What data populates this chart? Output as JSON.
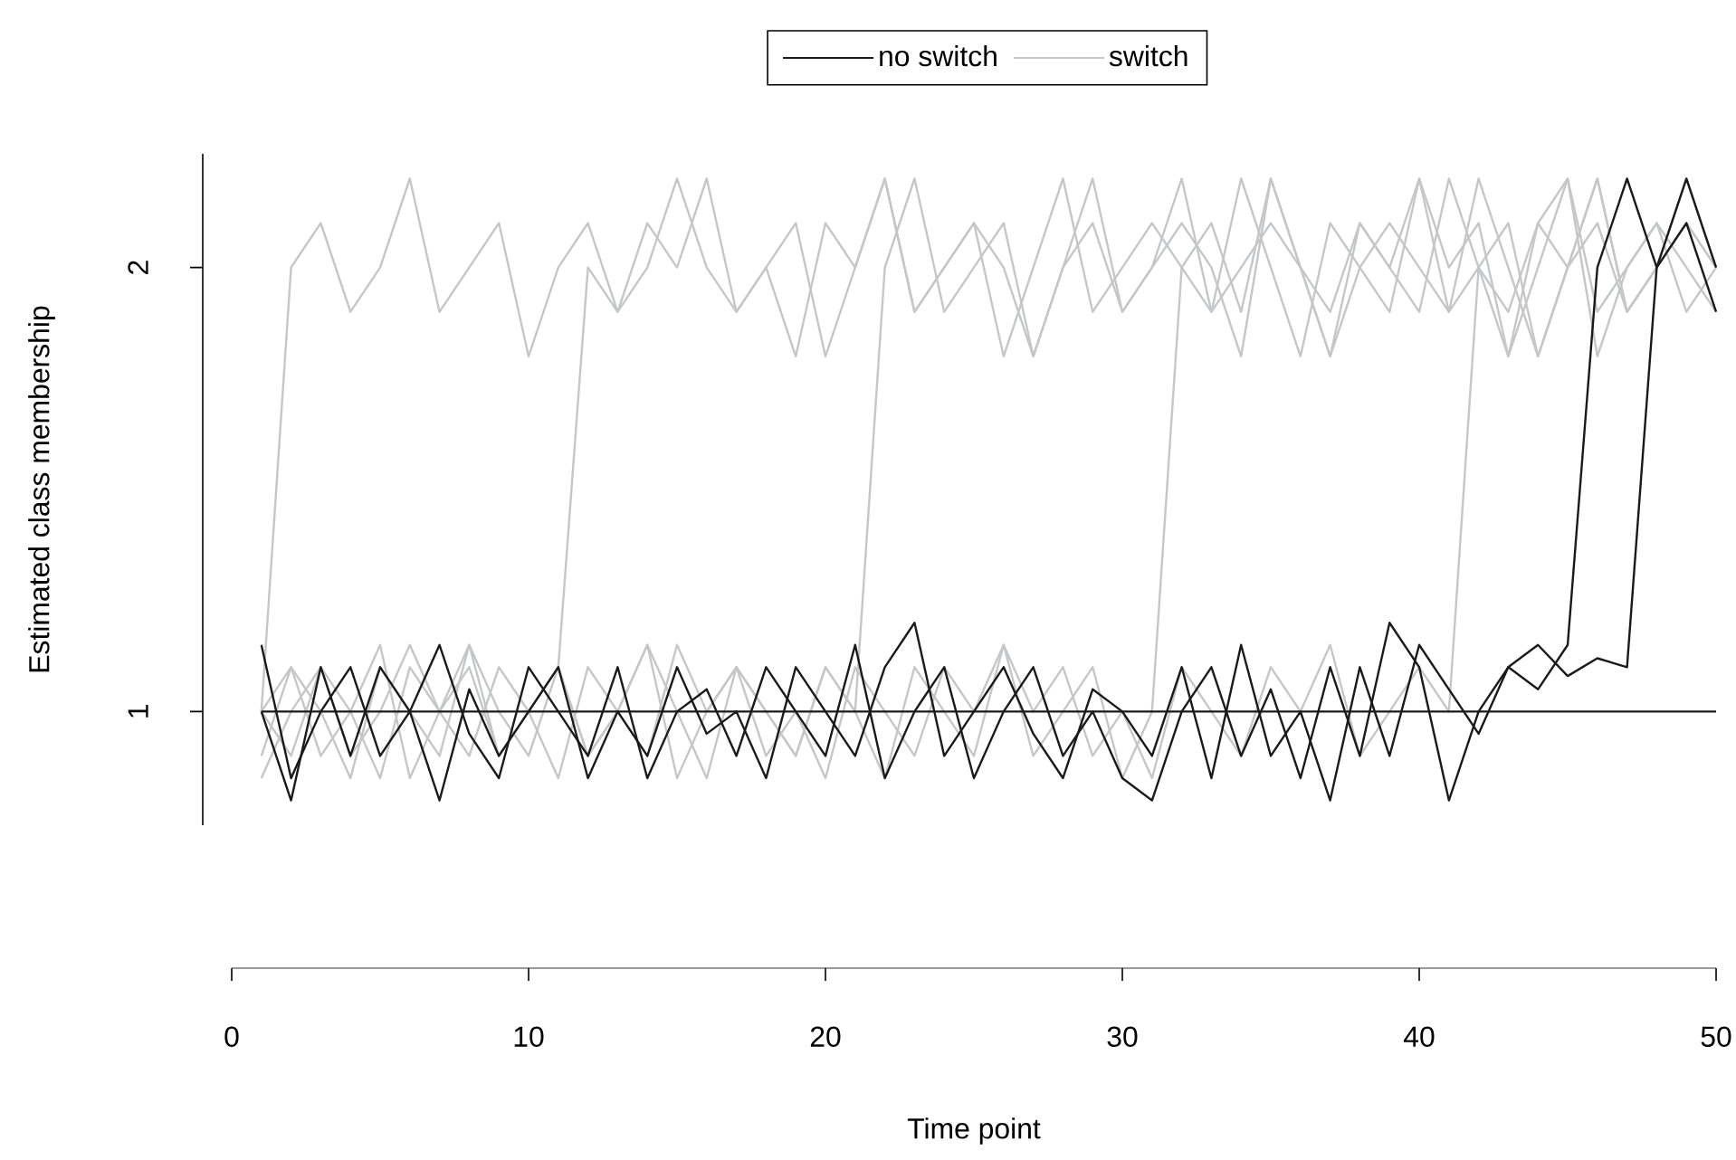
{
  "chart_data": {
    "type": "line",
    "xlabel": "Time point",
    "ylabel": "Estimated class membership",
    "x": [
      1,
      2,
      3,
      4,
      5,
      6,
      7,
      8,
      9,
      10,
      11,
      12,
      13,
      14,
      15,
      16,
      17,
      18,
      19,
      20,
      21,
      22,
      23,
      24,
      25,
      26,
      27,
      28,
      29,
      30,
      31,
      32,
      33,
      34,
      35,
      36,
      37,
      38,
      39,
      40,
      41,
      42,
      43,
      44,
      45,
      46,
      47,
      48,
      49,
      50
    ],
    "xlim": [
      0,
      50
    ],
    "xticks": [
      0,
      10,
      20,
      30,
      40,
      50
    ],
    "ylim": [
      0.744,
      2.256
    ],
    "yticks": [
      1,
      2
    ],
    "legend": "top",
    "series": [
      {
        "name": "no switch",
        "color": "#1a1a1a",
        "values": [
          1,
          1,
          1,
          1,
          1,
          1,
          1,
          1,
          1,
          1,
          1,
          1,
          1,
          1,
          1,
          1,
          1,
          1,
          1,
          1,
          1,
          1,
          1,
          1,
          1,
          1,
          1,
          1,
          1,
          1,
          1,
          1,
          1,
          1,
          1,
          1,
          1,
          1,
          1,
          1,
          1,
          1,
          1,
          1,
          1,
          1,
          1,
          1,
          1,
          1
        ]
      },
      {
        "color": "#1a1a1a",
        "values": [
          1,
          0.8,
          1.1,
          0.9,
          1.1,
          1,
          0.8,
          1.05,
          0.9,
          1,
          1.1,
          0.85,
          1,
          0.9,
          1.1,
          0.95,
          1,
          0.85,
          1.1,
          1,
          0.9,
          1.1,
          1.2,
          0.9,
          1,
          1.1,
          0.95,
          0.85,
          1.05,
          1,
          0.9,
          1.1,
          0.85,
          1.15,
          0.9,
          1,
          0.8,
          1.1,
          0.9,
          1.15,
          1.05,
          0.95,
          1.1,
          1.05,
          1.15,
          2,
          2.2,
          2,
          2.2,
          2
        ]
      },
      {
        "color": "#1a1a1a",
        "values": [
          1.15,
          0.85,
          1,
          1.1,
          0.9,
          1,
          1.15,
          0.95,
          0.85,
          1.1,
          1,
          0.9,
          1.1,
          0.85,
          1,
          1.05,
          0.9,
          1.1,
          1,
          0.9,
          1.15,
          0.85,
          1,
          1.1,
          0.85,
          1,
          1.1,
          0.9,
          1,
          0.85,
          0.8,
          1,
          1.1,
          0.9,
          1.05,
          0.85,
          1.1,
          0.9,
          1.2,
          1.1,
          0.8,
          1,
          1.1,
          1.15,
          1.08,
          1.12,
          1.1,
          2,
          2.1,
          1.9
        ]
      },
      {
        "name": "switch",
        "color": "#c3c7c9",
        "values": [
          1,
          2,
          2.1,
          1.9,
          2,
          2.2,
          1.9,
          2,
          2.1,
          1.8,
          2,
          2.1,
          1.9,
          2,
          2.2,
          2,
          1.9,
          2,
          2.1,
          1.8,
          2,
          2.2,
          1.9,
          2,
          2.1,
          2,
          1.8,
          2,
          2.1,
          1.9,
          2,
          2.2,
          1.9,
          2,
          2.1,
          2,
          1.8,
          2,
          2.1,
          2,
          1.9,
          2.2,
          2,
          1.8,
          2,
          2.1,
          1.9,
          2,
          2.2,
          2
        ]
      },
      {
        "color": "#c3c7c9",
        "values": [
          0.9,
          1.1,
          1,
          0.85,
          1.1,
          1,
          0.9,
          1.15,
          1,
          0.9,
          1.1,
          2,
          1.9,
          2.1,
          2,
          2.2,
          1.9,
          2,
          1.8,
          2.1,
          2,
          2.2,
          1.9,
          2,
          2.1,
          1.8,
          2,
          2.2,
          1.9,
          2,
          2.1,
          2,
          1.9,
          2.2,
          2,
          1.8,
          2.1,
          2,
          1.9,
          2.2,
          2,
          2.1,
          1.8,
          2,
          2.2,
          1.9,
          2,
          2.1,
          2,
          1.9
        ]
      },
      {
        "color": "#c3c7c9",
        "values": [
          1,
          1.1,
          0.9,
          1,
          1.15,
          0.85,
          1,
          1.1,
          0.9,
          1,
          1.1,
          0.9,
          1,
          1.15,
          1,
          0.85,
          1.1,
          1,
          0.9,
          1.1,
          1,
          2,
          2.2,
          1.9,
          2,
          2.1,
          1.8,
          2,
          2.2,
          1.9,
          2,
          2.1,
          2,
          1.8,
          2.2,
          2,
          1.9,
          2.1,
          2,
          2.2,
          1.9,
          2,
          1.8,
          2.1,
          2,
          2.2,
          1.9,
          2,
          2.1,
          2
        ]
      },
      {
        "color": "#c3c7c9",
        "values": [
          0.85,
          1,
          1.1,
          0.9,
          1,
          1.15,
          1,
          0.9,
          1.1,
          1,
          0.85,
          1.1,
          1,
          0.9,
          1.15,
          1,
          1.1,
          0.9,
          1,
          0.85,
          1.1,
          1,
          0.9,
          1.1,
          1,
          1.15,
          0.9,
          1,
          1.1,
          0.85,
          1,
          2,
          2.1,
          1.9,
          2.2,
          2,
          1.8,
          2.1,
          2,
          1.9,
          2.2,
          2,
          2.1,
          1.8,
          2,
          2.2,
          1.9,
          2,
          2.1,
          2
        ]
      },
      {
        "color": "#c3c7c9",
        "values": [
          1,
          0.9,
          1.1,
          1,
          0.85,
          1.1,
          1,
          1.15,
          0.9,
          1,
          1.1,
          0.9,
          1,
          1.15,
          0.85,
          1,
          1.1,
          1,
          0.9,
          1.1,
          1,
          0.85,
          1.1,
          1,
          0.9,
          1.15,
          1,
          1.1,
          0.9,
          1,
          0.85,
          1.1,
          1,
          0.9,
          1.1,
          1,
          1.15,
          0.9,
          1,
          1.1,
          1,
          2,
          1.9,
          2.1,
          2.2,
          1.8,
          2,
          2.1,
          1.9,
          2
        ]
      }
    ]
  }
}
